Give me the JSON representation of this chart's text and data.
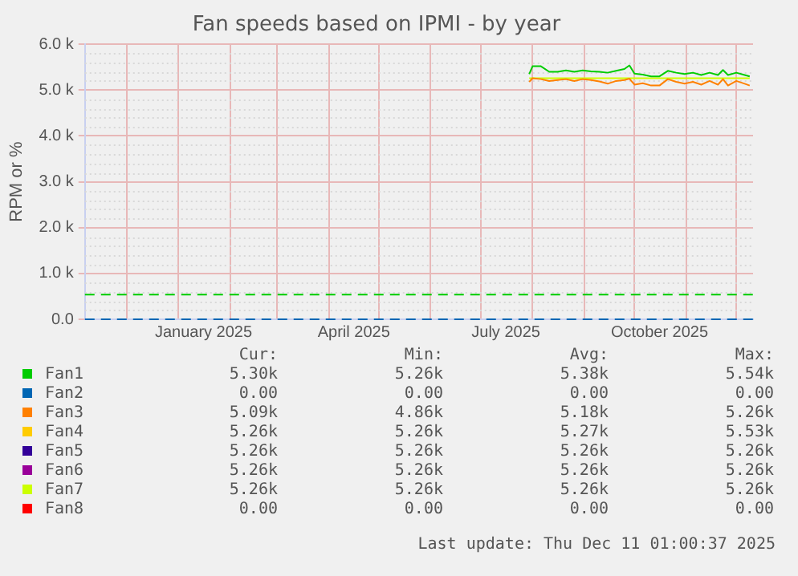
{
  "chart_data": {
    "type": "line",
    "title": "Fan speeds based on IPMI - by year",
    "ylabel": "RPM or %",
    "x": [
      "2025-07-30",
      "2025-08-01",
      "2025-08-06",
      "2025-08-11",
      "2025-08-16",
      "2025-08-21",
      "2025-08-26",
      "2025-08-31",
      "2025-09-05",
      "2025-09-10",
      "2025-09-15",
      "2025-09-20",
      "2025-09-25",
      "2025-09-28",
      "2025-10-01",
      "2025-10-06",
      "2025-10-11",
      "2025-10-16",
      "2025-10-21",
      "2025-10-26",
      "2025-10-31",
      "2025-11-05",
      "2025-11-10",
      "2025-11-15",
      "2025-11-20",
      "2025-11-23",
      "2025-11-26",
      "2025-12-01",
      "2025-12-06",
      "2025-12-09"
    ],
    "series": [
      {
        "name": "Fan1",
        "color": "#00cc00",
        "values": [
          5350,
          5520,
          5520,
          5400,
          5400,
          5430,
          5400,
          5430,
          5410,
          5400,
          5380,
          5420,
          5460,
          5540,
          5360,
          5340,
          5300,
          5300,
          5420,
          5380,
          5350,
          5380,
          5330,
          5380,
          5330,
          5440,
          5330,
          5380,
          5330,
          5300
        ]
      },
      {
        "name": "Fan2",
        "color": "#0066b3",
        "values": [
          null,
          null,
          null,
          null,
          null,
          null,
          null,
          null,
          null,
          null,
          null,
          null,
          null,
          null,
          null,
          null,
          null,
          null,
          null,
          null,
          null,
          null,
          null,
          null,
          null,
          null,
          null,
          null,
          null,
          null
        ]
      },
      {
        "name": "Fan3",
        "color": "#ff8000",
        "values": [
          5180,
          5260,
          5240,
          5200,
          5220,
          5240,
          5200,
          5240,
          5220,
          5190,
          5140,
          5200,
          5220,
          5250,
          5120,
          5150,
          5100,
          5100,
          5240,
          5180,
          5140,
          5180,
          5120,
          5200,
          5120,
          5240,
          5100,
          5200,
          5140,
          5100
        ]
      },
      {
        "name": "Fan4",
        "color": "#ffcc00",
        "values": [
          null,
          null,
          null,
          null,
          null,
          null,
          null,
          null,
          null,
          null,
          null,
          null,
          null,
          null,
          null,
          null,
          null,
          null,
          null,
          null,
          null,
          null,
          null,
          null,
          null,
          null,
          null,
          null,
          null,
          null
        ]
      },
      {
        "name": "Fan5",
        "color": "#330099",
        "values": [
          null,
          null,
          null,
          null,
          null,
          null,
          null,
          null,
          null,
          null,
          null,
          null,
          null,
          null,
          null,
          null,
          null,
          null,
          null,
          null,
          null,
          null,
          null,
          null,
          null,
          null,
          null,
          null,
          null,
          null
        ]
      },
      {
        "name": "Fan6",
        "color": "#990099",
        "values": [
          null,
          null,
          null,
          null,
          null,
          null,
          null,
          null,
          null,
          null,
          null,
          null,
          null,
          null,
          null,
          null,
          null,
          null,
          null,
          null,
          null,
          null,
          null,
          null,
          null,
          null,
          null,
          null,
          null,
          null
        ]
      },
      {
        "name": "Fan7",
        "color": "#ccff00",
        "x": [
          "2025-07-30",
          "2025-12-09"
        ],
        "values": [
          5260,
          5260
        ]
      },
      {
        "name": "Fan8",
        "color": "#ff0000",
        "values": [
          null,
          null,
          null,
          null,
          null,
          null,
          null,
          null,
          null,
          null,
          null,
          null,
          null,
          null,
          null,
          null,
          null,
          null,
          null,
          null,
          null,
          null,
          null,
          null,
          null,
          null,
          null,
          null,
          null,
          null
        ]
      }
    ],
    "xlim": [
      "2024-11-06",
      "2025-12-11"
    ],
    "xticks": [
      {
        "value": "2024-12-01",
        "label": null
      },
      {
        "value": "2025-01-01",
        "label": null
      },
      {
        "value": "2025-01-16",
        "label": "January 2025"
      },
      {
        "value": "2025-02-01",
        "label": null
      },
      {
        "value": "2025-03-01",
        "label": null
      },
      {
        "value": "2025-04-01",
        "label": null
      },
      {
        "value": "2025-04-16",
        "label": "April 2025"
      },
      {
        "value": "2025-05-01",
        "label": null
      },
      {
        "value": "2025-06-01",
        "label": null
      },
      {
        "value": "2025-07-01",
        "label": null
      },
      {
        "value": "2025-07-16",
        "label": "July 2025"
      },
      {
        "value": "2025-08-01",
        "label": null
      },
      {
        "value": "2025-09-01",
        "label": null
      },
      {
        "value": "2025-10-01",
        "label": null
      },
      {
        "value": "2025-10-16",
        "label": "October 2025"
      },
      {
        "value": "2025-11-01",
        "label": null
      },
      {
        "value": "2025-12-01",
        "label": null
      }
    ],
    "ylim": [
      0,
      6000
    ],
    "yticks": [
      {
        "value": 0,
        "label": "0.0"
      },
      {
        "value": 1000,
        "label": "1.0 k"
      },
      {
        "value": 2000,
        "label": "2.0 k"
      },
      {
        "value": 3000,
        "label": "3.0 k"
      },
      {
        "value": 4000,
        "label": "4.0 k"
      },
      {
        "value": 5000,
        "label": "5.0 k"
      },
      {
        "value": 6000,
        "label": "6.0 k"
      }
    ],
    "grid": true,
    "legend": "bottom",
    "ref_lines": [
      {
        "axis": "y",
        "value": 540,
        "color": "#00cc00",
        "line_style": "dashed"
      },
      {
        "axis": "y",
        "value": 0,
        "color": "#0066b3",
        "line_style": "dashed"
      }
    ],
    "annotations": [
      "Cur:",
      "Min:",
      "Avg:",
      "Max:",
      "5.30k",
      "5.26k",
      "5.38k",
      "5.54k",
      "0.00",
      "0.00",
      "0.00",
      "0.00",
      "5.09k",
      "4.86k",
      "5.18k",
      "5.26k",
      "5.26k",
      "5.26k",
      "5.27k",
      "5.53k",
      "5.26k",
      "5.26k",
      "5.26k",
      "5.26k",
      "5.26k",
      "5.26k",
      "5.26k",
      "5.26k",
      "5.26k",
      "5.26k",
      "5.26k",
      "5.26k",
      "0.00",
      "0.00",
      "0.00",
      "0.00",
      "Last update: Thu Dec 11 01:00:37 2025"
    ]
  }
}
